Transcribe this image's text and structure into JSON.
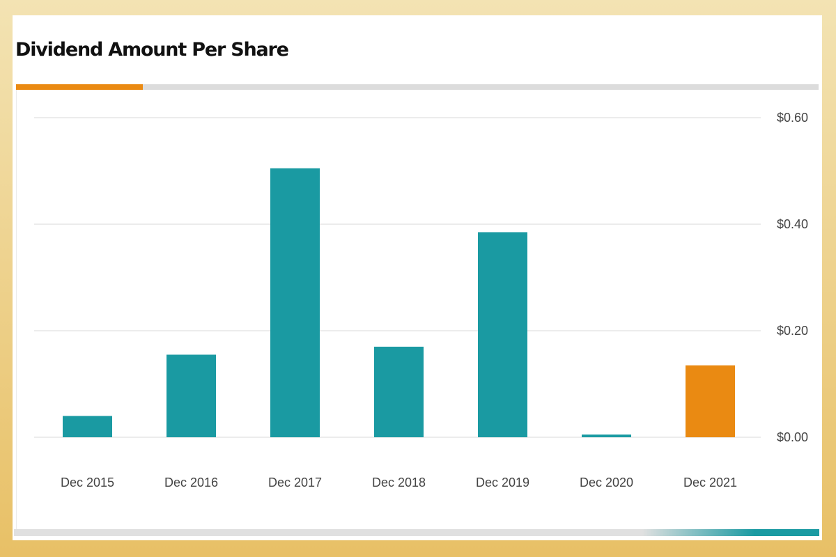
{
  "chart_data": {
    "type": "bar",
    "title": "Dividend Amount Per Share",
    "categories": [
      "Dec 2015",
      "Dec 2016",
      "Dec 2017",
      "Dec 2018",
      "Dec 2019",
      "Dec 2020",
      "Dec 2021"
    ],
    "values": [
      0.04,
      0.155,
      0.505,
      0.17,
      0.385,
      0.005,
      0.135
    ],
    "ylim": [
      0,
      0.6
    ],
    "yticks": [
      0.0,
      0.2,
      0.4,
      0.6
    ],
    "ytick_labels": [
      "$0.00",
      "$0.20",
      "$0.40",
      "$0.60"
    ],
    "y_axis_position": "right",
    "grid": true,
    "highlight_index": 6,
    "colors": {
      "bar": "#1a9aa2",
      "highlight": "#ea8a12",
      "grid": "#e6e6e6"
    }
  }
}
